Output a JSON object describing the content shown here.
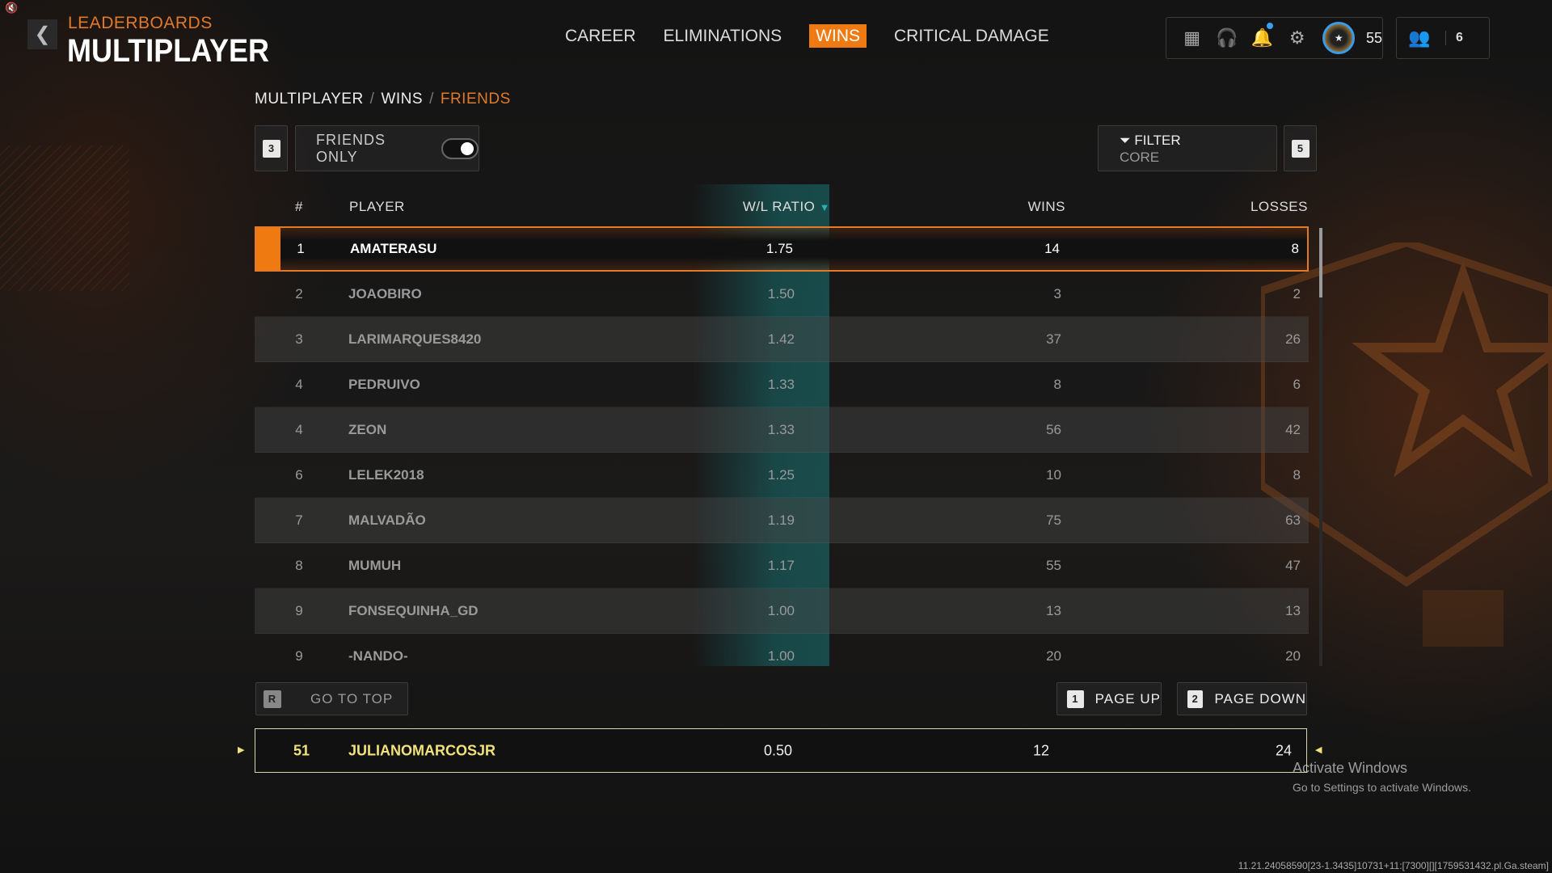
{
  "header": {
    "section": "LEADERBOARDS",
    "title": "MULTIPLAYER",
    "back_icon": "chevron-left-icon",
    "mute_icon": "speaker-muted-icon"
  },
  "nav": {
    "tabs": [
      {
        "label": "CAREER"
      },
      {
        "label": "ELIMINATIONS"
      },
      {
        "label": "WINS",
        "active": true
      },
      {
        "label": "CRITICAL DAMAGE"
      }
    ],
    "accent": "#f07a12"
  },
  "topbar": {
    "icons": [
      "grid-icon",
      "headset-chat-icon",
      "bell-icon",
      "gear-icon"
    ],
    "notification_color": "#3aa0f0",
    "level": "55",
    "friends_count": "6"
  },
  "breadcrumb": [
    "MULTIPLAYER",
    "WINS",
    "FRIENDS"
  ],
  "toolbar": {
    "key_left": "3",
    "friends_only_label": "FRIENDS ONLY",
    "friends_only_on": true,
    "filter_label": "FILTER",
    "filter_value": "CORE",
    "key_right": "5"
  },
  "table": {
    "columns": {
      "rank": "#",
      "player": "PLAYER",
      "ratio": "W/L RATIO",
      "wins": "WINS",
      "losses": "LOSSES"
    },
    "sort_column": "W/L RATIO",
    "sort_dir": "descending",
    "sort_color": "#2ab0b0",
    "rows": [
      {
        "rank": "1",
        "player": "AMATERASU",
        "ratio": "1.75",
        "wins": "14",
        "losses": "8"
      },
      {
        "rank": "2",
        "player": "JOAOBIRO",
        "ratio": "1.50",
        "wins": "3",
        "losses": "2"
      },
      {
        "rank": "3",
        "player": "LARIMARQUES8420",
        "ratio": "1.42",
        "wins": "37",
        "losses": "26"
      },
      {
        "rank": "4",
        "player": "PEDRUIVO",
        "ratio": "1.33",
        "wins": "8",
        "losses": "6"
      },
      {
        "rank": "4",
        "player": "ZEON",
        "ratio": "1.33",
        "wins": "56",
        "losses": "42"
      },
      {
        "rank": "6",
        "player": "LELEK2018",
        "ratio": "1.25",
        "wins": "10",
        "losses": "8"
      },
      {
        "rank": "7",
        "player": "MALVADÃO",
        "ratio": "1.19",
        "wins": "75",
        "losses": "63"
      },
      {
        "rank": "8",
        "player": "MUMUH",
        "ratio": "1.17",
        "wins": "55",
        "losses": "47"
      },
      {
        "rank": "9",
        "player": "FONSEQUINHA_GD",
        "ratio": "1.00",
        "wins": "13",
        "losses": "13"
      },
      {
        "rank": "9",
        "player": "-NANDO-",
        "ratio": "1.00",
        "wins": "20",
        "losses": "20"
      }
    ]
  },
  "buttons": {
    "go_top_key": "R",
    "go_top": "GO TO TOP",
    "page_up_key": "1",
    "page_up": "PAGE UP",
    "page_down_key": "2",
    "page_down": "PAGE DOWN"
  },
  "me": {
    "rank": "51",
    "player": "JULIANOMARCOSJR",
    "ratio": "0.50",
    "wins": "12",
    "losses": "24"
  },
  "watermark": {
    "line1": "Activate Windows",
    "line2": "Go to Settings to activate Windows."
  },
  "build": "11.21.24058590[23-1.3435]10731+11:[7300][][1759531432.pl.Ga.steam]"
}
